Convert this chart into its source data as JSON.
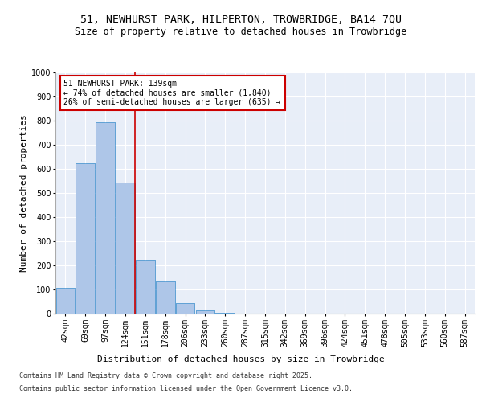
{
  "title_line1": "51, NEWHURST PARK, HILPERTON, TROWBRIDGE, BA14 7QU",
  "title_line2": "Size of property relative to detached houses in Trowbridge",
  "xlabel": "Distribution of detached houses by size in Trowbridge",
  "ylabel": "Number of detached properties",
  "footer_line1": "Contains HM Land Registry data © Crown copyright and database right 2025.",
  "footer_line2": "Contains public sector information licensed under the Open Government Licence v3.0.",
  "annotation_line1": "51 NEWHURST PARK: 139sqm",
  "annotation_line2": "← 74% of detached houses are smaller (1,840)",
  "annotation_line3": "26% of semi-detached houses are larger (635) →",
  "bar_color": "#aec6e8",
  "bar_edge_color": "#5a9fd4",
  "vline_color": "#cc0000",
  "annotation_box_color": "#cc0000",
  "background_color": "#e8eef8",
  "grid_color": "#ffffff",
  "categories": [
    "42sqm",
    "69sqm",
    "97sqm",
    "124sqm",
    "151sqm",
    "178sqm",
    "206sqm",
    "233sqm",
    "260sqm",
    "287sqm",
    "315sqm",
    "342sqm",
    "369sqm",
    "396sqm",
    "424sqm",
    "451sqm",
    "478sqm",
    "505sqm",
    "533sqm",
    "560sqm",
    "587sqm"
  ],
  "values": [
    108,
    625,
    795,
    545,
    220,
    135,
    43,
    13,
    5,
    0,
    0,
    0,
    0,
    0,
    0,
    0,
    0,
    0,
    0,
    0,
    0
  ],
  "ylim": [
    0,
    1000
  ],
  "yticks": [
    0,
    100,
    200,
    300,
    400,
    500,
    600,
    700,
    800,
    900,
    1000
  ],
  "vline_x": 3.5,
  "title_fontsize": 9.5,
  "subtitle_fontsize": 8.5,
  "axis_label_fontsize": 8,
  "tick_fontsize": 7,
  "annotation_fontsize": 7,
  "footer_fontsize": 6
}
